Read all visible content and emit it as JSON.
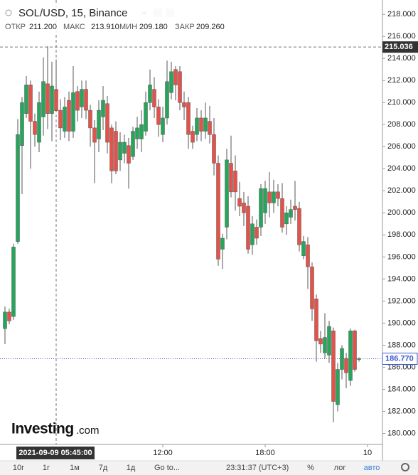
{
  "chart_data": {
    "type": "candlestick",
    "title": "SOL/USD, 15, Binance",
    "legend_labels": [
      "ОТКР",
      "МАКС",
      "МИН",
      "ЗАКР"
    ],
    "colors": {
      "up": "#26a65b",
      "down": "#e4524a"
    },
    "x": [
      "2021-09-09 02:45",
      "2021-09-09 03:00",
      "2021-09-09 03:15",
      "2021-09-09 03:30",
      "2021-09-09 03:45",
      "2021-09-09 04:00",
      "2021-09-09 04:15",
      "2021-09-09 04:30",
      "2021-09-09 04:45",
      "2021-09-09 05:00",
      "2021-09-09 05:15",
      "2021-09-09 05:30",
      "2021-09-09 05:45",
      "2021-09-09 06:00",
      "2021-09-09 06:15",
      "2021-09-09 06:30",
      "2021-09-09 06:45",
      "2021-09-09 07:00",
      "2021-09-09 07:15",
      "2021-09-09 07:30",
      "2021-09-09 07:45",
      "2021-09-09 08:00",
      "2021-09-09 08:15",
      "2021-09-09 08:30",
      "2021-09-09 08:45",
      "2021-09-09 09:00",
      "2021-09-09 09:15",
      "2021-09-09 09:30",
      "2021-09-09 09:45",
      "2021-09-09 10:00",
      "2021-09-09 10:15",
      "2021-09-09 10:30",
      "2021-09-09 10:45",
      "2021-09-09 11:00",
      "2021-09-09 11:15",
      "2021-09-09 11:30",
      "2021-09-09 11:45",
      "2021-09-09 12:00",
      "2021-09-09 12:15",
      "2021-09-09 12:30",
      "2021-09-09 12:45",
      "2021-09-09 13:00",
      "2021-09-09 13:15",
      "2021-09-09 13:30",
      "2021-09-09 13:45",
      "2021-09-09 14:00",
      "2021-09-09 14:15",
      "2021-09-09 14:30",
      "2021-09-09 14:45",
      "2021-09-09 15:00",
      "2021-09-09 15:15",
      "2021-09-09 15:30",
      "2021-09-09 15:45",
      "2021-09-09 16:00",
      "2021-09-09 16:15",
      "2021-09-09 16:30",
      "2021-09-09 16:45",
      "2021-09-09 17:00",
      "2021-09-09 17:15",
      "2021-09-09 17:30",
      "2021-09-09 17:45",
      "2021-09-09 18:00",
      "2021-09-09 18:15",
      "2021-09-09 18:30",
      "2021-09-09 18:45",
      "2021-09-09 19:00",
      "2021-09-09 19:15",
      "2021-09-09 19:30",
      "2021-09-09 19:45",
      "2021-09-09 20:00",
      "2021-09-09 20:15",
      "2021-09-09 20:30",
      "2021-09-09 20:45",
      "2021-09-09 21:00",
      "2021-09-09 21:15",
      "2021-09-09 21:30",
      "2021-09-09 21:45",
      "2021-09-09 22:00",
      "2021-09-09 22:15",
      "2021-09-09 22:30",
      "2021-09-09 22:45",
      "2021-09-09 23:00",
      "2021-09-09 23:15",
      "2021-09-09 23:30"
    ],
    "open": [
      189.5,
      191.0,
      190.6,
      197.4,
      206.1,
      209.0,
      211.6,
      208.3,
      206.4,
      208.7,
      211.7,
      209.0,
      211.2,
      209.3,
      207.4,
      210.2,
      207.4,
      211.0,
      209.6,
      211.2,
      209.3,
      207.7,
      206.7,
      208.7,
      209.9,
      207.7,
      207.4,
      204.8,
      205.4,
      206.1,
      205.1,
      206.7,
      206.7,
      207.4,
      210.0,
      211.2,
      209.6,
      207.1,
      208.6,
      210.9,
      213.0,
      212.8,
      210.0,
      210.0,
      207.4,
      207.1,
      208.6,
      207.4,
      208.3,
      207.1,
      204.5,
      196.7,
      198.7,
      204.5,
      203.8,
      201.3,
      200.9,
      200.6,
      197.1,
      198.7,
      198.7,
      200.0,
      201.9,
      200.9,
      201.9,
      201.3,
      199.0,
      199.6,
      200.6,
      200.4,
      196.1,
      197.1,
      195.1,
      192.2,
      188.6,
      187.3,
      187.1,
      189.3,
      182.6,
      185.8,
      186.8,
      184.8,
      189.3,
      186.7
    ],
    "high": [
      191.5,
      191.3,
      197.2,
      208.5,
      210.5,
      212.4,
      212.0,
      209.0,
      211.0,
      214.1,
      215.1,
      213.7,
      213.91,
      210.3,
      210.5,
      211.0,
      213.3,
      211.5,
      212.0,
      212.0,
      209.8,
      208.4,
      210.2,
      211.5,
      210.6,
      208.0,
      208.3,
      207.3,
      207.1,
      206.8,
      207.8,
      208.7,
      209.3,
      211.0,
      213.0,
      212.3,
      210.3,
      209.6,
      213.8,
      213.7,
      213.3,
      213.3,
      211.0,
      210.5,
      207.9,
      209.5,
      209.3,
      210.0,
      209.7,
      208.6,
      205.2,
      198.1,
      205.8,
      207.0,
      205.2,
      202.8,
      201.9,
      201.5,
      199.7,
      199.4,
      202.6,
      202.9,
      203.7,
      203.0,
      202.6,
      202.7,
      200.6,
      201.2,
      202.9,
      201.0,
      197.9,
      197.8,
      195.5,
      192.6,
      189.3,
      190.9,
      190.2,
      189.6,
      186.4,
      188.0,
      187.3,
      189.5,
      189.4,
      186.9
    ],
    "low": [
      188.1,
      189.9,
      190.3,
      197.2,
      201.7,
      208.6,
      204.0,
      206.0,
      205.5,
      207.0,
      207.6,
      206.5,
      209.18,
      206.6,
      206.8,
      206.5,
      206.8,
      208.3,
      208.6,
      208.5,
      206.0,
      202.7,
      205.5,
      207.5,
      205.4,
      202.7,
      203.5,
      203.8,
      204.5,
      202.2,
      204.8,
      205.8,
      205.5,
      207.0,
      209.3,
      208.6,
      206.9,
      206.4,
      208.0,
      210.3,
      210.2,
      209.3,
      208.4,
      205.8,
      205.8,
      206.5,
      206.5,
      206.7,
      206.3,
      203.4,
      195.2,
      194.9,
      197.6,
      201.4,
      200.2,
      199.7,
      198.8,
      196.3,
      196.2,
      197.1,
      197.9,
      199.0,
      199.6,
      200.0,
      200.6,
      198.2,
      198.0,
      199.0,
      199.3,
      196.5,
      195.8,
      193.1,
      190.2,
      186.5,
      187.3,
      186.8,
      186.4,
      181.0,
      182.0,
      184.9,
      184.1,
      184.3,
      185.6,
      186.5
    ],
    "close": [
      191.0,
      190.2,
      196.9,
      207.1,
      210.0,
      211.6,
      208.3,
      207.1,
      210.0,
      211.9,
      209.0,
      211.5,
      209.26,
      207.7,
      209.6,
      207.4,
      210.9,
      209.3,
      211.2,
      209.3,
      207.7,
      206.4,
      209.3,
      210.2,
      206.4,
      203.8,
      203.8,
      206.4,
      206.4,
      204.5,
      207.4,
      207.7,
      208.0,
      210.0,
      211.6,
      209.6,
      208.0,
      208.6,
      211.9,
      212.8,
      211.6,
      210.0,
      209.6,
      207.1,
      206.4,
      208.6,
      207.4,
      208.6,
      207.1,
      204.5,
      195.8,
      197.7,
      204.8,
      201.9,
      201.9,
      200.6,
      200.0,
      196.7,
      199.0,
      197.7,
      202.2,
      202.2,
      200.9,
      201.9,
      201.3,
      198.7,
      200.0,
      200.3,
      200.3,
      197.1,
      197.4,
      195.1,
      191.3,
      188.4,
      188.1,
      188.7,
      189.7,
      182.9,
      185.8,
      187.7,
      185.5,
      189.3,
      185.8,
      186.77
    ],
    "ylim": [
      179,
      219.3
    ],
    "yticks": [
      {
        "value": 180,
        "label": "180.000"
      },
      {
        "value": 182,
        "label": "182.000"
      },
      {
        "value": 184,
        "label": "184.000"
      },
      {
        "value": 186,
        "label": "186.000"
      },
      {
        "value": 188,
        "label": "188.000"
      },
      {
        "value": 190,
        "label": "190.000"
      },
      {
        "value": 192,
        "label": "192.000"
      },
      {
        "value": 194,
        "label": "194.000"
      },
      {
        "value": 196,
        "label": "196.000"
      },
      {
        "value": 198,
        "label": "198.000"
      },
      {
        "value": 200,
        "label": "200.000"
      },
      {
        "value": 202,
        "label": "202.000"
      },
      {
        "value": 204,
        "label": "204.000"
      },
      {
        "value": 206,
        "label": "206.000"
      },
      {
        "value": 208,
        "label": "208.000"
      },
      {
        "value": 210,
        "label": "210.000"
      },
      {
        "value": 212,
        "label": "212.000"
      },
      {
        "value": 214,
        "label": "214.000"
      },
      {
        "value": 216,
        "label": "216.000"
      },
      {
        "value": 218,
        "label": "218.000"
      }
    ],
    "xticks": [
      {
        "value": "2021-09-09 12:00",
        "label": "12:00"
      },
      {
        "value": "2021-09-09 18:00",
        "label": "18:00"
      },
      {
        "value": "2021-09-10 00:00",
        "label": "10"
      }
    ],
    "crosshair": {
      "x": {
        "value": "2021-09-09 05:45",
        "label": "2021-09-09 05:45:00"
      },
      "y": {
        "value": 215.036,
        "label": "215.036"
      },
      "ohlc_labels": [
        "211.200",
        "213.910",
        "209.180",
        "209.260"
      ]
    },
    "last_price": {
      "value": 186.77,
      "label": "186.770"
    }
  },
  "watermark": {
    "brand": "Investing",
    "suffix": ".com"
  },
  "toolbar": {
    "ranges": [
      "10г",
      "1г",
      "1м",
      "7д",
      "1д"
    ],
    "goto": "Go to...",
    "clock": "23:31:37 (UTC+3)",
    "scale_buttons": [
      "%",
      "лог",
      "авто"
    ]
  }
}
